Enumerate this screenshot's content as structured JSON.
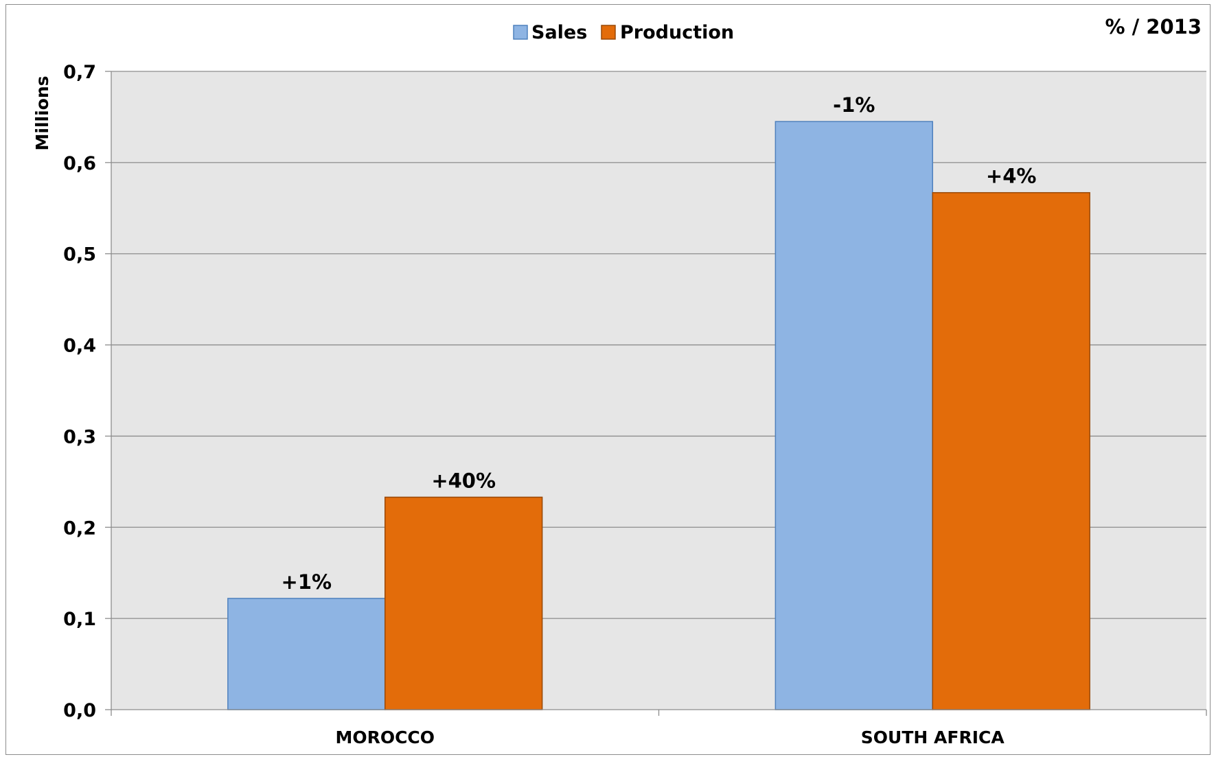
{
  "chart_data": {
    "type": "bar",
    "categories": [
      "MOROCCO",
      "SOUTH AFRICA"
    ],
    "series": [
      {
        "name": "Sales",
        "color": "#8eb4e3",
        "values": [
          0.122,
          0.645
        ],
        "labels": [
          "+1%",
          "-1%"
        ]
      },
      {
        "name": "Production",
        "color": "#e36c0a",
        "values": [
          0.233,
          0.567
        ],
        "labels": [
          "+40%",
          "+4%"
        ]
      }
    ],
    "ylabel": "Millions",
    "ylim": [
      0,
      0.7
    ],
    "yticks": [
      "0,0",
      "0,1",
      "0,2",
      "0,3",
      "0,4",
      "0,5",
      "0,6",
      "0,7"
    ],
    "note": "% / 2013",
    "legend": "top-center",
    "grid": true,
    "plot_background": "#e6e6e6"
  }
}
